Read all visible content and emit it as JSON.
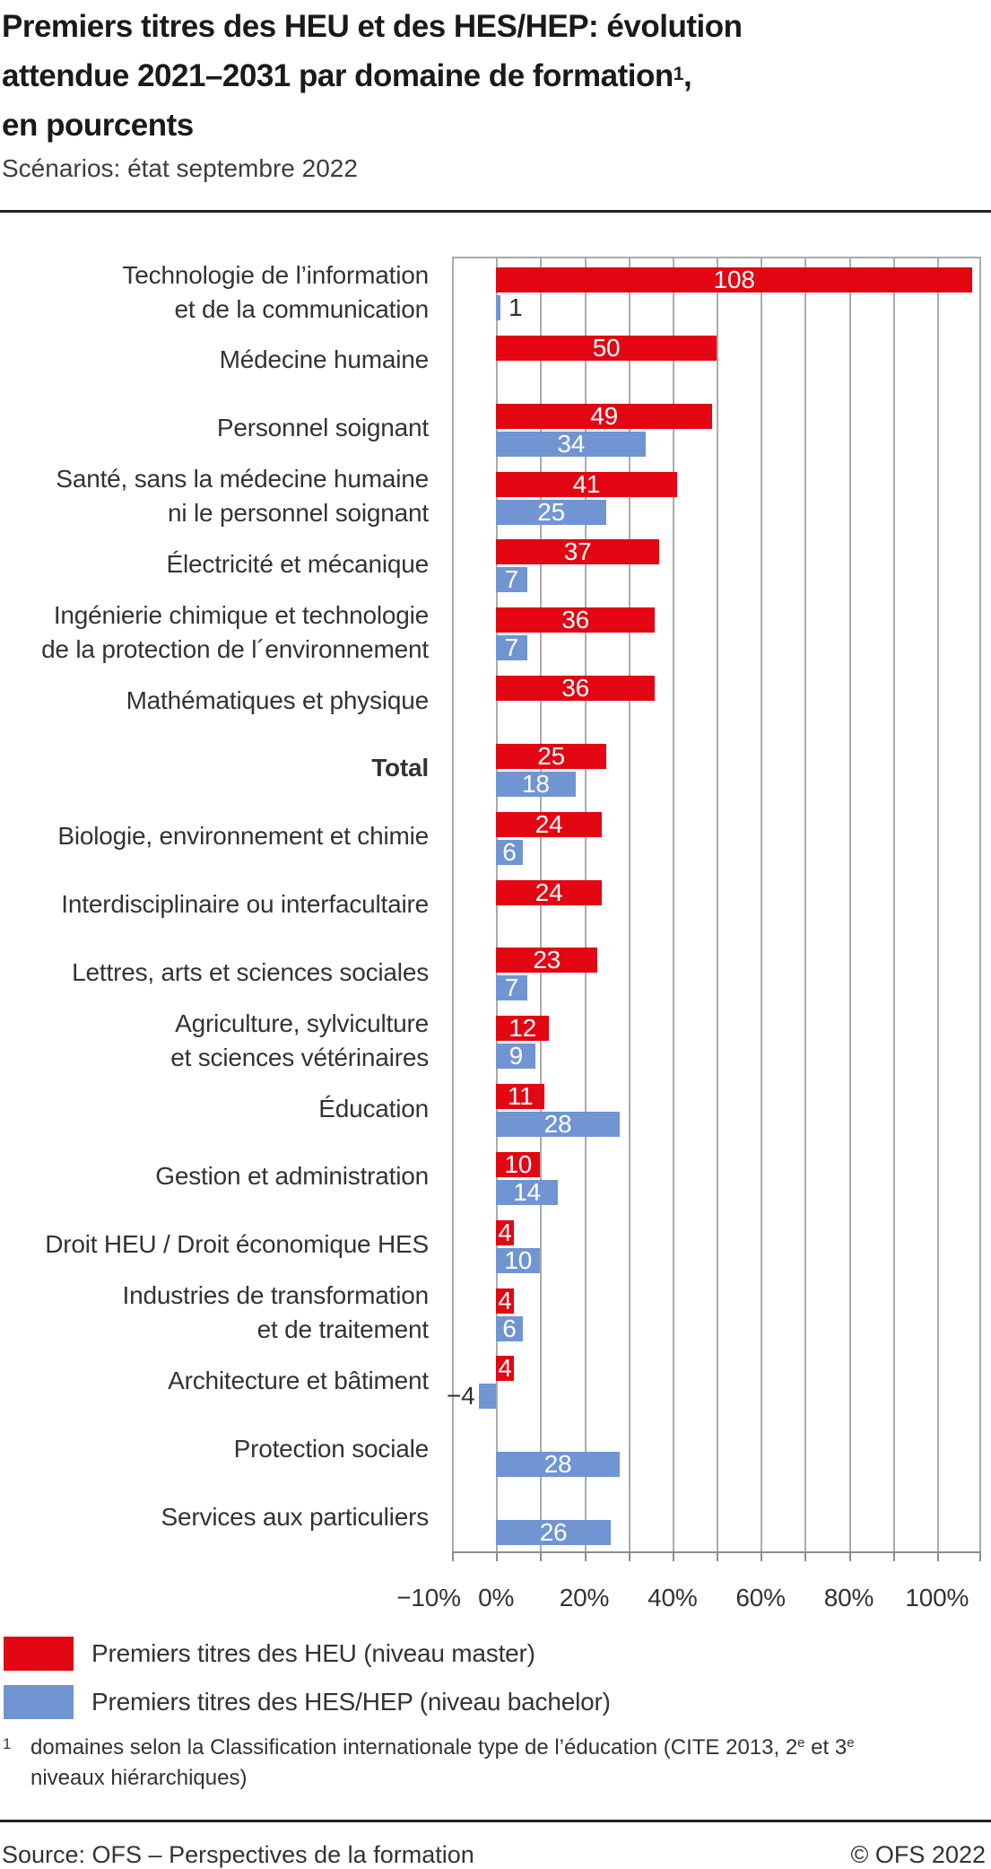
{
  "header": {
    "title_line1": "Premiers titres des HEU et des HES/HEP: évolution",
    "title_line2_pre": "attendue 2021–2031 par domaine de formation",
    "title_line2_sup": "1",
    "title_line2_post": ",",
    "title_line3": "en pourcents",
    "subtitle": "Scénarios: état septembre 2022"
  },
  "chart_data": {
    "type": "bar",
    "orientation": "horizontal",
    "title": "Premiers titres des HEU et des HES/HEP: évolution attendue 2021–2031 par domaine de formation, en pourcents",
    "xlim": [
      -10,
      110
    ],
    "xticks": [
      -10,
      0,
      20,
      40,
      60,
      80,
      100
    ],
    "xtick_labels": [
      "−10%",
      "0%",
      "20%",
      "40%",
      "60%",
      "80%",
      "100%"
    ],
    "grid": "vertical gridlines every 10 percent, light gray",
    "legend_position": "bottom-left",
    "categories": [
      {
        "lines": [
          "Technologie de l’information",
          "et de la communication"
        ],
        "bold": false
      },
      {
        "lines": [
          "Médecine humaine"
        ],
        "bold": false
      },
      {
        "lines": [
          "Personnel soignant"
        ],
        "bold": false
      },
      {
        "lines": [
          "Santé, sans la médecine humaine",
          "ni le personnel soignant"
        ],
        "bold": false
      },
      {
        "lines": [
          "Électricité et mécanique"
        ],
        "bold": false
      },
      {
        "lines": [
          "Ingénierie chimique et technologie",
          "de la protection de l´environnement"
        ],
        "bold": false
      },
      {
        "lines": [
          "Mathématiques et physique"
        ],
        "bold": false
      },
      {
        "lines": [
          "Total"
        ],
        "bold": true
      },
      {
        "lines": [
          "Biologie, environnement et chimie"
        ],
        "bold": false
      },
      {
        "lines": [
          "Interdisciplinaire ou interfacultaire"
        ],
        "bold": false
      },
      {
        "lines": [
          "Lettres, arts et sciences sociales"
        ],
        "bold": false
      },
      {
        "lines": [
          "Agriculture, sylviculture",
          "et sciences vétérinaires"
        ],
        "bold": false
      },
      {
        "lines": [
          "Éducation"
        ],
        "bold": false
      },
      {
        "lines": [
          "Gestion et administration"
        ],
        "bold": false
      },
      {
        "lines": [
          "Droit HEU / Droit économique HES"
        ],
        "bold": false
      },
      {
        "lines": [
          "Industries de transformation",
          "et de traitement"
        ],
        "bold": false
      },
      {
        "lines": [
          "Architecture et bâtiment"
        ],
        "bold": false
      },
      {
        "lines": [
          "Protection sociale"
        ],
        "bold": false
      },
      {
        "lines": [
          "Services aux particuliers"
        ],
        "bold": false
      }
    ],
    "series": [
      {
        "name": "Premiers titres des HEU (niveau master)",
        "color": "#e30613",
        "values": [
          108,
          50,
          49,
          41,
          37,
          36,
          36,
          25,
          24,
          24,
          23,
          12,
          11,
          10,
          4,
          4,
          4,
          null,
          null
        ]
      },
      {
        "name": "Premiers titres des HES/HEP (niveau bachelor)",
        "color": "#7195d2",
        "values": [
          1,
          null,
          34,
          25,
          7,
          7,
          null,
          18,
          6,
          null,
          7,
          9,
          28,
          14,
          10,
          6,
          -4,
          28,
          26
        ]
      }
    ]
  },
  "legend": {
    "items": [
      {
        "swatch_color": "#e30613",
        "label": "Premiers titres des HEU (niveau master)"
      },
      {
        "swatch_color": "#7195d2",
        "label": "Premiers titres des HES/HEP (niveau bachelor)"
      }
    ]
  },
  "footnote": {
    "marker": "1",
    "line1_pre": "domaines selon la Classification internationale type de l’éducation (CITE 2013, 2",
    "line1_sup1": "e",
    "line1_mid": " et 3",
    "line1_sup2": "e",
    "line2": "niveaux hiérarchiques)"
  },
  "footer": {
    "source": "Source: OFS – Perspectives de la formation",
    "copyright": "© OFS 2022"
  },
  "colors": {
    "heu_red": "#e30613",
    "hes_blue": "#7195d2",
    "gridline": "#ababab",
    "axis": "#8c8c8c",
    "text_dark": "#333333",
    "value_label_inside": "#ffffff",
    "value_label_outside": "#2f2f2f"
  }
}
